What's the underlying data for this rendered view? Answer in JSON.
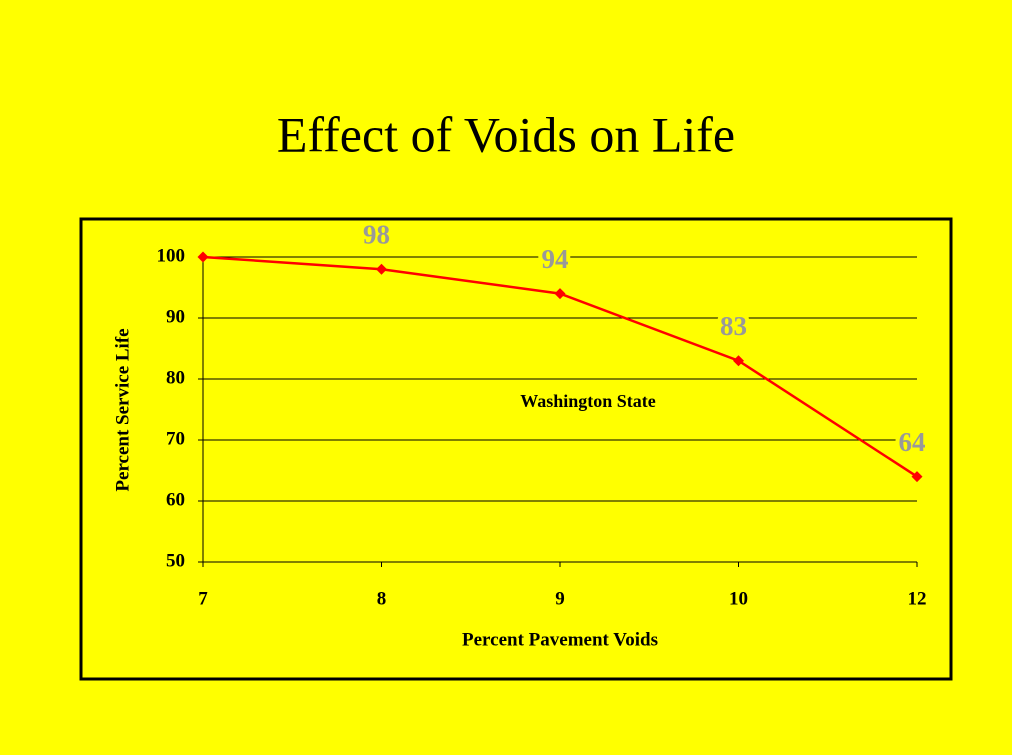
{
  "chart_data": {
    "type": "line",
    "title": "Effect of Voids on Life",
    "x_label": "Percent Pavement Voids",
    "y_label": "Percent Service Life",
    "annotation": "Washington State",
    "categories": [
      "7",
      "8",
      "9",
      "10",
      "12"
    ],
    "series": [
      {
        "name": "Washington State",
        "color": "#ff0000",
        "values": [
          100,
          98,
          94,
          83,
          64
        ]
      }
    ],
    "value_labels": [
      null,
      "98",
      "94",
      "83",
      "64"
    ],
    "ylim": [
      50,
      100
    ],
    "yticks": [
      50,
      60,
      70,
      80,
      90,
      100
    ],
    "grid": true,
    "background": "#ffff00",
    "label_color": "#999999"
  }
}
